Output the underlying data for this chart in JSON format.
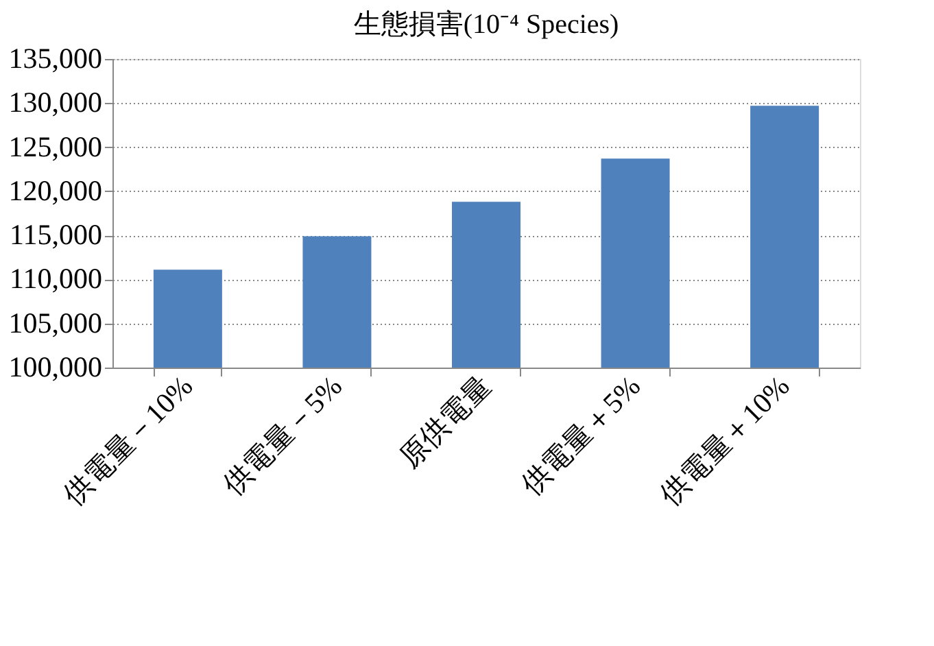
{
  "chart_data": {
    "type": "bar",
    "title": "生態損害(10⁻⁴ Species)",
    "categories": [
      "供電量－10%",
      "供電量－5%",
      "原供電量",
      "供電量＋5%",
      "供電量＋10%"
    ],
    "values": [
      111100,
      114900,
      118800,
      123700,
      129700
    ],
    "color": "#4f81bd",
    "ylim": [
      100000,
      135000
    ],
    "yticks": [
      {
        "value": 100000,
        "label": "100,000"
      },
      {
        "value": 105000,
        "label": "105,000"
      },
      {
        "value": 110000,
        "label": "110,000"
      },
      {
        "value": 115000,
        "label": "115,000"
      },
      {
        "value": 120000,
        "label": "120,000"
      },
      {
        "value": 125000,
        "label": "125,000"
      },
      {
        "value": 130000,
        "label": "130,000"
      },
      {
        "value": 135000,
        "label": "135,000"
      }
    ],
    "grid": "y"
  }
}
